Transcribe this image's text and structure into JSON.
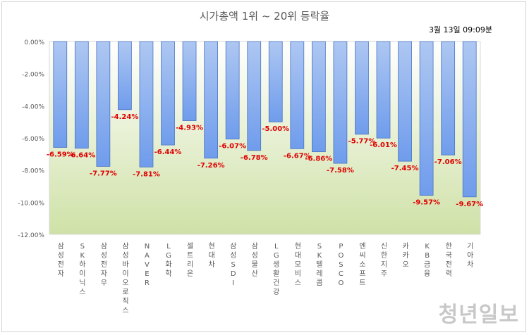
{
  "chart_data": {
    "type": "bar",
    "title": "시가총액 1위 ~ 20위 등락율",
    "subtitle": "3월 13일 09:09분",
    "categories": [
      "삼성전자",
      "SK하이닉스",
      "삼성전자우",
      "삼성바이오로직스",
      "NAVER",
      "LG화학",
      "셀트리온",
      "현대차",
      "삼성SDI",
      "삼성물산",
      "LG생활건강",
      "현대모비스",
      "SK텔레콤",
      "POSCO",
      "엔씨소프트",
      "신한지주",
      "카카오",
      "KB금융",
      "한국전력",
      "기아차"
    ],
    "values": [
      -6.59,
      -6.64,
      -7.77,
      -4.24,
      -7.81,
      -6.44,
      -4.93,
      -7.26,
      -6.07,
      -6.78,
      -5.0,
      -6.67,
      -6.86,
      -7.58,
      -5.77,
      -6.01,
      -7.45,
      -9.57,
      -7.06,
      -9.67
    ],
    "value_labels": [
      "-6.59%",
      "-6.64%",
      "-7.77%",
      "-4.24%",
      "-7.81%",
      "-6.44%",
      "-4.93%",
      "-7.26%",
      "-6.07%",
      "-6.78%",
      "-5.00%",
      "-6.67%",
      "-6.86%",
      "-7.58%",
      "-5.77%",
      "-6.01%",
      "-7.45%",
      "-9.57%",
      "-7.06%",
      "-9.67%"
    ],
    "y_ticks": [
      "0.00%",
      "-2.00%",
      "-4.00%",
      "-6.00%",
      "-8.00%",
      "-10.00%",
      "-12.00%"
    ],
    "ylim": [
      -12,
      0
    ],
    "y_tick_step": -2,
    "grid": false,
    "legend": "none",
    "colors": {
      "bar_top": "#aec7f2",
      "bar_bottom": "#6f9cec",
      "bar_edge": "#4a74c4",
      "plot_top": "#ffffff",
      "plot_bottom": "#cfe1a7",
      "label": "#e00000",
      "tick": "#595959"
    }
  },
  "watermark": "청년일보"
}
